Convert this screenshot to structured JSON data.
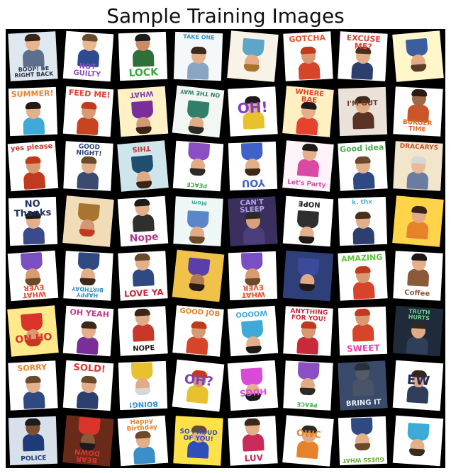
{
  "title": "Sample Training Images",
  "tiles": [
    {
      "text": "BOOP! BE RIGHT BACK",
      "bg": "#dfe7ef",
      "accent": "#2a3550",
      "angle": -3,
      "pos": "bot",
      "size": 8,
      "flip": false,
      "skin": "#e7b48f",
      "hair": "#3a2418",
      "shirt": "#5d6f8c"
    },
    {
      "text": "NOT GUILTY",
      "bg": "#ffffff",
      "accent": "#8d4fc2",
      "angle": 4,
      "pos": "bot",
      "size": 10,
      "flip": false,
      "skin": "#e8b78f",
      "hair": "#6b4a2b",
      "shirt": "#2e4b8f"
    },
    {
      "text": "LOCK",
      "bg": "#ffffff",
      "accent": "#3aa639",
      "angle": -2,
      "pos": "bot",
      "size": 14,
      "flip": false,
      "skin": "#c98c64",
      "hair": "#1d1b1b",
      "shirt": "#2f6f3a"
    },
    {
      "text": "TAKE ONE",
      "bg": "#f4f8fb",
      "accent": "#3b8fc7",
      "angle": 2,
      "pos": "top",
      "size": 8,
      "flip": false,
      "skin": "#e3b08b",
      "hair": "#3b2a1c",
      "shirt": "#8aa4c4"
    },
    {
      "text": "",
      "bg": "#f8f3e6",
      "accent": "#d9a63a",
      "angle": 5,
      "pos": "mid",
      "size": 9,
      "flip": true,
      "skin": "#e5ad85",
      "hair": "#a8742f",
      "shirt": "#5ba6c9"
    },
    {
      "text": "GOTCHA",
      "bg": "#ffffff",
      "accent": "#e2562a",
      "angle": -3,
      "pos": "top",
      "size": 11,
      "flip": false,
      "skin": "#d99a72",
      "hair": "#c23a1e",
      "shirt": "#d6442a"
    },
    {
      "text": "EXCUSE ME?",
      "bg": "#ffffff",
      "accent": "#d94a3a",
      "angle": 3,
      "pos": "top",
      "size": 11,
      "flip": false,
      "skin": "#e3ae88",
      "hair": "#4a2f1c",
      "shirt": "#2c3f6e"
    },
    {
      "text": "",
      "bg": "#fff7c9",
      "accent": "#6e9fd8",
      "angle": -5,
      "pos": "mid",
      "size": 9,
      "flip": true,
      "skin": "#e2ab86",
      "hair": "#5b3b23",
      "shirt": "#3c5da0"
    },
    {
      "text": "SUMMER!",
      "bg": "#ffffff",
      "accent": "#ef7f2d",
      "angle": -2,
      "pos": "top",
      "size": 11,
      "flip": false,
      "skin": "#e4b08a",
      "hair": "#1f1a18",
      "shirt": "#3fa9d8"
    },
    {
      "text": "FEED ME!",
      "bg": "#ffffff",
      "accent": "#e0402f",
      "angle": 4,
      "pos": "top",
      "size": 11,
      "flip": false,
      "skin": "#d99a72",
      "hair": "#c23a1e",
      "shirt": "#c8431f"
    },
    {
      "text": "WHAT",
      "bg": "#fff1c4",
      "accent": "#7e3fb8",
      "angle": -4,
      "pos": "bot",
      "size": 10,
      "flip": true,
      "skin": "#cf9a74",
      "hair": "#3a2418",
      "shirt": "#7a2e9a"
    },
    {
      "text": "ON THE WAY",
      "bg": "#f2f7f4",
      "accent": "#2f7f6b",
      "angle": 6,
      "pos": "bot",
      "size": 8,
      "flip": true,
      "skin": "#e0ac88",
      "hair": "#2c2a26",
      "shirt": "#2f7f6b"
    },
    {
      "text": "OH!",
      "bg": "#ffffff",
      "accent": "#7f3fbf",
      "angle": -3,
      "pos": "mid",
      "size": 20,
      "flip": false,
      "skin": "#e2ad87",
      "hair": "#1d1b1b",
      "shirt": "#e8c12f"
    },
    {
      "text": "WHERE BAE",
      "bg": "#fff0c2",
      "accent": "#e6432f",
      "angle": 5,
      "pos": "top",
      "size": 10,
      "flip": false,
      "skin": "#e4b08a",
      "hair": "#1f1a18",
      "shirt": "#e6432f"
    },
    {
      "text": "I'M OUT",
      "bg": "#eae2d8",
      "accent": "#6a3b2a",
      "angle": -2,
      "pos": "mid",
      "size": 10,
      "flip": false,
      "skin": "#e0aa84",
      "hair": "#3b2a1c",
      "shirt": "#5a3324"
    },
    {
      "text": "BURGER TIME",
      "bg": "#ffffff",
      "accent": "#d9682a",
      "angle": 3,
      "pos": "bot",
      "size": 9,
      "flip": false,
      "skin": "#9c6a47",
      "hair": "#2a1a12",
      "shirt": "#c9562a"
    },
    {
      "text": "yes please",
      "bg": "#ffffff",
      "accent": "#c9362a",
      "angle": -4,
      "pos": "top",
      "size": 10,
      "flip": false,
      "skin": "#d99a72",
      "hair": "#c23a1e",
      "shirt": "#c23a1e"
    },
    {
      "text": "GOOD NIGHT!",
      "bg": "#ffffff",
      "accent": "#2c3f77",
      "angle": 3,
      "pos": "top",
      "size": 9,
      "flip": false,
      "skin": "#e4b08a",
      "hair": "#6b4a2b",
      "shirt": "#3b4a6e"
    },
    {
      "text": "THIS",
      "bg": "#cfe5ec",
      "accent": "#c8332c",
      "angle": -5,
      "pos": "bot",
      "size": 10,
      "flip": true,
      "skin": "#e0aa84",
      "hair": "#3a2418",
      "shirt": "#1f4e6e"
    },
    {
      "text": "PEACE",
      "bg": "#ffffff",
      "accent": "#3fae49",
      "angle": 4,
      "pos": "top",
      "size": 8,
      "flip": true,
      "skin": "#e2ab86",
      "hair": "#2c2a26",
      "shirt": "#8a4fc2"
    },
    {
      "text": "YOU",
      "bg": "#ffffff",
      "accent": "#3f61c9",
      "angle": -2,
      "pos": "top",
      "size": 14,
      "flip": true,
      "skin": "#e3ae88",
      "hair": "#3b2a1c",
      "shirt": "#3f61c9"
    },
    {
      "text": "Let's Party",
      "bg": "#fff3fb",
      "accent": "#d94aa4",
      "angle": 5,
      "pos": "bot",
      "size": 9,
      "flip": false,
      "skin": "#e4b08a",
      "hair": "#1f1a18",
      "shirt": "#d94aa4"
    },
    {
      "text": "Good idea",
      "bg": "#ffffff",
      "accent": "#4caa4f",
      "angle": -3,
      "pos": "top",
      "size": 11,
      "flip": false,
      "skin": "#e5b18c",
      "hair": "#6b4a2b",
      "shirt": "#2f4a82"
    },
    {
      "text": "DRACARYS",
      "bg": "#f1e5cc",
      "accent": "#c9512a",
      "angle": 3,
      "pos": "top",
      "size": 9,
      "flip": false,
      "skin": "#e7bb98",
      "hair": "#d7d7d7",
      "shirt": "#6a7ca0"
    },
    {
      "text": "NO Thanks",
      "bg": "#ffffff",
      "accent": "#1f2f5f",
      "angle": -2,
      "pos": "top",
      "size": 13,
      "flip": false,
      "skin": "#e4b08a",
      "hair": "#1f1a18",
      "shirt": "#3a4a8a"
    },
    {
      "text": "",
      "bg": "#f0ddb8",
      "accent": "#b27a2a",
      "angle": 5,
      "pos": "mid",
      "size": 9,
      "flip": true,
      "skin": "#d39772",
      "hair": "#c23a1e",
      "shirt": "#a8742f"
    },
    {
      "text": "Nope",
      "bg": "#ffffff",
      "accent": "#b23a8f",
      "angle": -4,
      "pos": "bot",
      "size": 14,
      "flip": false,
      "skin": "#e4b08a",
      "hair": "#1f1a18",
      "shirt": "#2f2f2f"
    },
    {
      "text": "Mom",
      "bg": "#eef6f6",
      "accent": "#3fae9f",
      "angle": 3,
      "pos": "bot",
      "size": 8,
      "flip": true,
      "skin": "#e2ab86",
      "hair": "#6b4a2b",
      "shirt": "#5b86c9"
    },
    {
      "text": "CAN'T SLEEP",
      "bg": "#3b2f5e",
      "accent": "#b6a4e8",
      "angle": -3,
      "pos": "top",
      "size": 10,
      "flip": false,
      "skin": "#d9a07a",
      "hair": "#2c2a26",
      "shirt": "#4a3f7a"
    },
    {
      "text": "NOPE",
      "bg": "#ffffff",
      "accent": "#1f1a18",
      "angle": 4,
      "pos": "bot",
      "size": 10,
      "flip": true,
      "skin": "#e4b08a",
      "hair": "#1f1a18",
      "shirt": "#2f2f2f"
    },
    {
      "text": "k. thx",
      "bg": "#ffffff",
      "accent": "#4fb1e2",
      "angle": -2,
      "pos": "top",
      "size": 9,
      "flip": false,
      "skin": "#e3ae88",
      "hair": "#4a2f1c",
      "shirt": "#2c3f6e"
    },
    {
      "text": "",
      "bg": "#ffd34a",
      "accent": "#e6832a",
      "angle": 5,
      "pos": "mid",
      "size": 9,
      "flip": false,
      "skin": "#e0aa84",
      "hair": "#3a2418",
      "shirt": "#e6832a"
    },
    {
      "text": "WHAT EVER",
      "bg": "#ffffff",
      "accent": "#e14d2a",
      "angle": -4,
      "pos": "top",
      "size": 10,
      "flip": true,
      "skin": "#d99a72",
      "hair": "#6b4a2b",
      "shirt": "#7a4fc2"
    },
    {
      "text": "HAPPY BIRTHDAY",
      "bg": "#ffffff",
      "accent": "#3b8fc7",
      "angle": 3,
      "pos": "top",
      "size": 8,
      "flip": true,
      "skin": "#e3ae88",
      "hair": "#3b2a1c",
      "shirt": "#2f4a82"
    },
    {
      "text": "LOVE YA",
      "bg": "#ffffff",
      "accent": "#c92a3a",
      "angle": -3,
      "pos": "bot",
      "size": 12,
      "flip": false,
      "skin": "#e4b08a",
      "hair": "#6b4a2b",
      "shirt": "#2f4a82"
    },
    {
      "text": "",
      "bg": "#f0c24a",
      "accent": "#5b3fa8",
      "angle": 6,
      "pos": "mid",
      "size": 9,
      "flip": true,
      "skin": "#b07a55",
      "hair": "#2a1a12",
      "shirt": "#5b3fa8"
    },
    {
      "text": "WHAT EVER",
      "bg": "#ffffff",
      "accent": "#e14d2a",
      "angle": -2,
      "pos": "top",
      "size": 10,
      "flip": true,
      "skin": "#d99a72",
      "hair": "#6b4a2b",
      "shirt": "#7a4fc2"
    },
    {
      "text": "",
      "bg": "#2f3f7a",
      "accent": "#8fd1ef",
      "angle": 4,
      "pos": "mid",
      "size": 9,
      "flip": true,
      "skin": "#e2ab86",
      "hair": "#1f1a18",
      "shirt": "#3b4a9a"
    },
    {
      "text": "AMAZING",
      "bg": "#ffffff",
      "accent": "#5fc23a",
      "angle": -3,
      "pos": "top",
      "size": 11,
      "flip": false,
      "skin": "#d99a72",
      "hair": "#c23a1e",
      "shirt": "#d6442a"
    },
    {
      "text": "Coffee",
      "bg": "#ffffff",
      "accent": "#8a5a3a",
      "angle": 3,
      "pos": "bot",
      "size": 10,
      "flip": false,
      "skin": "#e4b08a",
      "hair": "#1f1a18",
      "shirt": "#8a5a3a"
    },
    {
      "text": "OH NO",
      "bg": "#ffe98a",
      "accent": "#d9332a",
      "angle": -5,
      "pos": "mid",
      "size": 14,
      "flip": true,
      "skin": "#d99a72",
      "hair": "#c23a1e",
      "shirt": "#d9332a"
    },
    {
      "text": "OH YEAH",
      "bg": "#ffffff",
      "accent": "#c9368f",
      "angle": 4,
      "pos": "top",
      "size": 11,
      "flip": false,
      "skin": "#e3ae88",
      "hair": "#3b2a1c",
      "shirt": "#7a2e9a"
    },
    {
      "text": "NOPE",
      "bg": "#ffffff",
      "accent": "#1f1a18",
      "angle": -3,
      "pos": "bot",
      "size": 10,
      "flip": false,
      "skin": "#e0aa84",
      "hair": "#3a2418",
      "shirt": "#c9362a"
    },
    {
      "text": "GOOD JOB",
      "bg": "#ffffff",
      "accent": "#e6832a",
      "angle": 5,
      "pos": "top",
      "size": 10,
      "flip": false,
      "skin": "#d99a72",
      "hair": "#c23a1e",
      "shirt": "#d6442a"
    },
    {
      "text": "WOOOO",
      "bg": "#ffffff",
      "accent": "#3fa9d8",
      "angle": -4,
      "pos": "bot",
      "size": 10,
      "flip": true,
      "skin": "#e4b08a",
      "hair": "#1f1a18",
      "shirt": "#3fa9d8"
    },
    {
      "text": "ANYTHING FOR YOU!",
      "bg": "#ffffff",
      "accent": "#c92a3a",
      "angle": 3,
      "pos": "top",
      "size": 9,
      "flip": false,
      "skin": "#d99a72",
      "hair": "#c23a1e",
      "shirt": "#c92a3a"
    },
    {
      "text": "SWEET",
      "bg": "#ffffff",
      "accent": "#e63fa8",
      "angle": -2,
      "pos": "bot",
      "size": 12,
      "flip": false,
      "skin": "#d99a72",
      "hair": "#c23a1e",
      "shirt": "#d6442a"
    },
    {
      "text": "TRUTH HURTS",
      "bg": "#1f2a3a",
      "accent": "#6fd38f",
      "angle": 4,
      "pos": "top",
      "size": 8,
      "flip": false,
      "skin": "#e0aa84",
      "hair": "#2c2a26",
      "shirt": "#2f3f5a"
    },
    {
      "text": "SORRY",
      "bg": "#ffffff",
      "accent": "#e6832a",
      "angle": -3,
      "pos": "top",
      "size": 11,
      "flip": false,
      "skin": "#e4b08a",
      "hair": "#6b4a2b",
      "shirt": "#2f4a82"
    },
    {
      "text": "SOLD!",
      "bg": "#ffffff",
      "accent": "#d9332a",
      "angle": 4,
      "pos": "top",
      "size": 13,
      "flip": false,
      "skin": "#e3ae88",
      "hair": "#6b4a2b",
      "shirt": "#2c3f6e"
    },
    {
      "text": "BOING!",
      "bg": "#ffffff",
      "accent": "#2f8fd8",
      "angle": -2,
      "pos": "top",
      "size": 10,
      "flip": true,
      "skin": "#e2ab86",
      "hair": "#d7d7d7",
      "shirt": "#e8c12f"
    },
    {
      "text": "OH?",
      "bg": "#ffffff",
      "accent": "#7f3fbf",
      "angle": 6,
      "pos": "mid",
      "size": 18,
      "flip": false,
      "skin": "#d99a72",
      "hair": "#c23a1e",
      "shirt": "#e8c12f"
    },
    {
      "text": "HUGS",
      "bg": "#ffffff",
      "accent": "#d94ad9",
      "angle": -4,
      "pos": "mid",
      "size": 12,
      "flip": true,
      "skin": "#e4b08a",
      "hair": "#1f1a18",
      "shirt": "#d94ad9"
    },
    {
      "text": "PEACE",
      "bg": "#ffffff",
      "accent": "#3fae49",
      "angle": 3,
      "pos": "top",
      "size": 8,
      "flip": true,
      "skin": "#e2ab86",
      "hair": "#2c2a26",
      "shirt": "#8a4fc2"
    },
    {
      "text": "BRING IT",
      "bg": "#3a4a6a",
      "accent": "#e8eef8",
      "angle": -3,
      "pos": "bot",
      "size": 10,
      "flip": false,
      "skin": "#555a66",
      "hair": "#2a2f3a",
      "shirt": "#4a5468"
    },
    {
      "text": "EW",
      "bg": "#ffffff",
      "accent": "#1f2a5a",
      "angle": 4,
      "pos": "mid",
      "size": 18,
      "flip": false,
      "skin": "#e0aa84",
      "hair": "#3a2418",
      "shirt": "#2f3f5a"
    },
    {
      "text": "POLICE",
      "bg": "#d8e0ea",
      "accent": "#1f3a7a",
      "angle": -2,
      "pos": "bot",
      "size": 9,
      "flip": false,
      "skin": "#7a4f33",
      "hair": "#1d1b1b",
      "shirt": "#1f3a7a"
    },
    {
      "text": "BEAR DOWN",
      "bg": "#6a2a1a",
      "accent": "#d9332a",
      "angle": 5,
      "pos": "top",
      "size": 10,
      "flip": true,
      "skin": "#8a5a3a",
      "hair": "#1d1b1b",
      "shirt": "#d9332a"
    },
    {
      "text": "Happy Birthday",
      "bg": "#ffffff",
      "accent": "#e6832a",
      "angle": -4,
      "pos": "top",
      "size": 9,
      "flip": false,
      "skin": "#e3ae88",
      "hair": "#6b4a2b",
      "shirt": "#3b8fc7"
    },
    {
      "text": "SO PROUD OF YOU!",
      "bg": "#ffe24a",
      "accent": "#2f4fb8",
      "angle": 3,
      "pos": "mid",
      "size": 9,
      "flip": false,
      "skin": "#e4b08a",
      "hair": "#6b4a2b",
      "shirt": "#2f4fb8"
    },
    {
      "text": "LUV",
      "bg": "#ffffff",
      "accent": "#c92a5a",
      "angle": -3,
      "pos": "bot",
      "size": 12,
      "flip": false,
      "skin": "#e3ae88",
      "hair": "#3b2a1c",
      "shirt": "#c92a5a"
    },
    {
      "text": "OWC",
      "bg": "#ffffff",
      "accent": "#e6832a",
      "angle": 5,
      "pos": "mid",
      "size": 13,
      "flip": false,
      "skin": "#e2ab86",
      "hair": "#2c2a26",
      "shirt": "#e6832a"
    },
    {
      "text": "GUESS WHAT",
      "bg": "#ffffff",
      "accent": "#6aa83a",
      "angle": -2,
      "pos": "top",
      "size": 8,
      "flip": true,
      "skin": "#e4b08a",
      "hair": "#6b4a2b",
      "shirt": "#2f4a82"
    },
    {
      "text": "",
      "bg": "#ffffff",
      "accent": "#3fa9d8",
      "angle": 4,
      "pos": "mid",
      "size": 9,
      "flip": true,
      "skin": "#e3ae88",
      "hair": "#3b2a1c",
      "shirt": "#3fa9d8"
    }
  ]
}
